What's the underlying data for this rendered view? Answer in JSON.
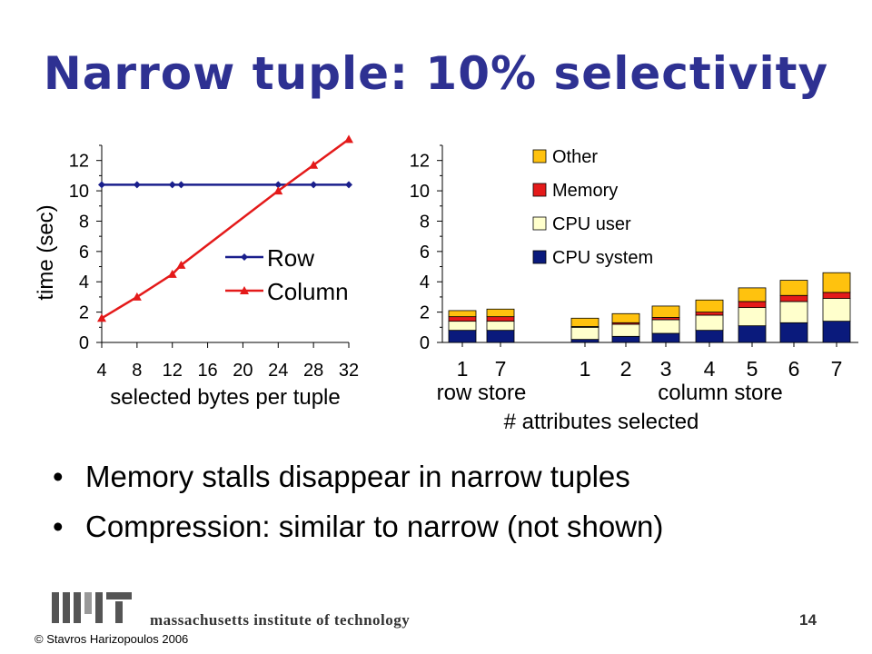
{
  "slide": {
    "title": "Narrow tuple: 10% selectivity",
    "bullets": [
      "Memory stalls disappear in narrow tuples",
      "Compression: similar to narrow (not shown)"
    ],
    "bullet_glyph": "•",
    "footer_text": "massachusetts institute of technology",
    "page_number": "14",
    "copyright": "© Stavros Harizopoulos 2006",
    "logo_alt": "MIT logo"
  },
  "chart_data": [
    {
      "type": "line",
      "ylabel": "time (sec)",
      "xlabel": "selected bytes per tuple",
      "xticks": [
        "4",
        "8",
        "12",
        "16",
        "20",
        "24",
        "28",
        "32"
      ],
      "yticks": [
        "0",
        "2",
        "4",
        "6",
        "8",
        "10",
        "12"
      ],
      "xlim": [
        4,
        32
      ],
      "ylim": [
        0,
        13
      ],
      "legend_position": "center-right",
      "series": [
        {
          "name": "Row",
          "color": "#1a1f8c",
          "marker": "diamond",
          "x": [
            4,
            8,
            12,
            13,
            24,
            28,
            32
          ],
          "y": [
            10.4,
            10.4,
            10.4,
            10.4,
            10.4,
            10.4,
            10.4
          ]
        },
        {
          "name": "Column",
          "color": "#e41a1a",
          "marker": "triangle",
          "x": [
            4,
            8,
            12,
            13,
            24,
            28,
            32
          ],
          "y": [
            1.6,
            3.0,
            4.5,
            5.1,
            10.0,
            11.7,
            13.4
          ]
        }
      ]
    },
    {
      "type": "bar",
      "stacked": true,
      "xlabel": "# attributes selected",
      "yticks": [
        "0",
        "2",
        "4",
        "6",
        "8",
        "10",
        "12"
      ],
      "ylim": [
        0,
        13
      ],
      "groups": [
        {
          "label": "row store",
          "categories": [
            "1",
            "7"
          ]
        },
        {
          "label": "column store",
          "categories": [
            "1",
            "2",
            "3",
            "4",
            "5",
            "6",
            "7"
          ]
        }
      ],
      "series": [
        {
          "name": "CPU system",
          "color": "#0a1a7c",
          "values": [
            0.8,
            0.8,
            0.2,
            0.4,
            0.6,
            0.8,
            1.1,
            1.3,
            1.4
          ]
        },
        {
          "name": "CPU user",
          "color": "#ffffcc",
          "values": [
            0.6,
            0.6,
            0.8,
            0.8,
            0.9,
            1.0,
            1.2,
            1.4,
            1.5
          ]
        },
        {
          "name": "Memory",
          "color": "#e41a1a",
          "values": [
            0.3,
            0.3,
            0.05,
            0.1,
            0.15,
            0.2,
            0.4,
            0.4,
            0.4
          ]
        },
        {
          "name": "Other",
          "color": "#ffc20e",
          "values": [
            0.4,
            0.5,
            0.55,
            0.6,
            0.75,
            0.8,
            0.9,
            1.0,
            1.3
          ]
        }
      ],
      "legend_position": "top"
    }
  ]
}
